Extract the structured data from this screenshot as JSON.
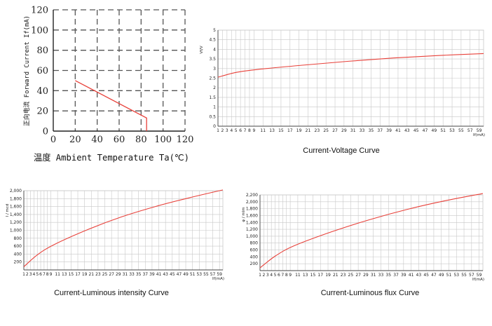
{
  "colors": {
    "curve": "#e8413a",
    "grid_dashed": "#555555",
    "grid_light": "#c8c8c8",
    "axis": "#444444"
  },
  "chart_data": [
    {
      "type": "line",
      "title": "",
      "xlabel": "温度 Ambient Temperature Ta(℃)",
      "ylabel": "正向电流 Forward Current If(mA)",
      "xlim": [
        0,
        120
      ],
      "ylim": [
        0,
        120
      ],
      "xticks": [
        "0",
        "20",
        "40",
        "60",
        "80",
        "100",
        "120"
      ],
      "yticks": [
        "0",
        "20",
        "40",
        "60",
        "80",
        "100",
        "120"
      ],
      "grid": "dashed",
      "series": [
        {
          "x": [
            20,
            85,
            85
          ],
          "y": [
            50,
            13,
            0
          ]
        }
      ]
    },
    {
      "type": "line",
      "title": "Current-Voltage Curve",
      "xlabel": "If(mA)",
      "ylabel": "Vf/V",
      "xlim": [
        1,
        60
      ],
      "ylim": [
        0,
        5
      ],
      "xticks": [
        "1",
        "2",
        "3",
        "4",
        "5",
        "6",
        "7",
        "8",
        "9",
        "11",
        "13",
        "15",
        "17",
        "19",
        "21",
        "23",
        "25",
        "27",
        "29",
        "31",
        "33",
        "35",
        "37",
        "39",
        "41",
        "43",
        "45",
        "47",
        "49",
        "51",
        "53",
        "55",
        "57",
        "59"
      ],
      "yticks": [
        "0",
        "0.5",
        "1",
        "1.5",
        "2",
        "2.5",
        "3",
        "3.5",
        "4",
        "4.5",
        "5"
      ],
      "grid": "on",
      "series": [
        {
          "x": [
            1,
            5,
            10,
            20,
            30,
            40,
            50,
            60
          ],
          "y": [
            2.55,
            2.8,
            2.96,
            3.18,
            3.38,
            3.55,
            3.68,
            3.78
          ]
        }
      ]
    },
    {
      "type": "line",
      "title": "Current-Luminous intensity Curve",
      "xlabel": "If(mA)",
      "ylabel": "I / mcd",
      "xlim": [
        1,
        60
      ],
      "ylim": [
        0,
        2000
      ],
      "xticks": [
        "1",
        "2",
        "3",
        "4",
        "5",
        "6",
        "7",
        "8",
        "9",
        "11",
        "13",
        "15",
        "17",
        "19",
        "21",
        "23",
        "25",
        "27",
        "29",
        "31",
        "33",
        "35",
        "37",
        "39",
        "41",
        "43",
        "45",
        "47",
        "49",
        "51",
        "53",
        "55",
        "57",
        "59"
      ],
      "yticks": [
        "200",
        "400",
        "600",
        "800",
        "1,000",
        "1,200",
        "1,400",
        "1,600",
        "1,800",
        "2,000"
      ],
      "grid": "on",
      "series": [
        {
          "x": [
            1,
            5,
            10,
            20,
            30,
            40,
            50,
            60
          ],
          "y": [
            80,
            380,
            640,
            1020,
            1340,
            1600,
            1820,
            2020
          ]
        }
      ]
    },
    {
      "type": "line",
      "title": "Current-Luminous flux Curve",
      "xlabel": "If(mA)",
      "ylabel": "φ / mlm",
      "xlim": [
        1,
        60
      ],
      "ylim": [
        0,
        2200
      ],
      "xticks": [
        "1",
        "2",
        "3",
        "4",
        "5",
        "6",
        "7",
        "8",
        "9",
        "11",
        "13",
        "15",
        "17",
        "19",
        "21",
        "23",
        "25",
        "27",
        "29",
        "31",
        "33",
        "35",
        "37",
        "39",
        "41",
        "43",
        "45",
        "47",
        "49",
        "51",
        "53",
        "55",
        "57",
        "59"
      ],
      "yticks": [
        "200",
        "400",
        "600",
        "800",
        "1,000",
        "1,200",
        "1,400",
        "1,600",
        "1,800",
        "2,000",
        "2,200"
      ],
      "grid": "on",
      "series": [
        {
          "x": [
            1,
            5,
            10,
            20,
            30,
            40,
            50,
            60
          ],
          "y": [
            80,
            420,
            720,
            1130,
            1480,
            1780,
            2030,
            2240
          ]
        }
      ]
    }
  ]
}
